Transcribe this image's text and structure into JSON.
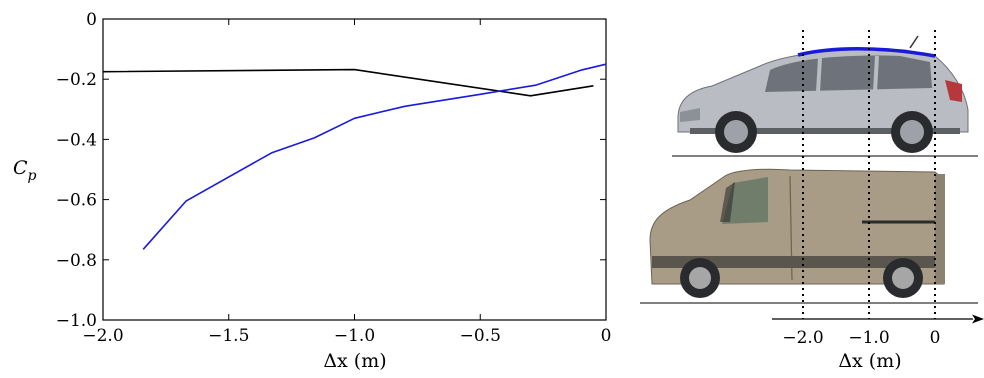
{
  "chart_data": {
    "type": "line",
    "xlabel": "Δx (m)",
    "ylabel": "Cp",
    "xlim": [
      -2.0,
      0
    ],
    "ylim": [
      -1.0,
      0
    ],
    "x_ticks": [
      "−2.0",
      "−1.5",
      "−1.0",
      "−0.5",
      "0"
    ],
    "y_ticks": [
      "0",
      "−0.2",
      "−0.4",
      "−0.6",
      "−0.8",
      "−1.0"
    ],
    "grid": false,
    "series": [
      {
        "color": "#000000",
        "x": [
          -2.0,
          -1.0,
          -0.3,
          -0.05
        ],
        "y": [
          -0.175,
          -0.168,
          -0.255,
          -0.222
        ]
      },
      {
        "color": "#1a1adb",
        "x": [
          -1.84,
          -1.67,
          -1.33,
          -1.16,
          -1.0,
          -0.8,
          -0.5,
          -0.28,
          -0.1,
          0.0
        ],
        "y": [
          -0.765,
          -0.605,
          -0.445,
          -0.395,
          -0.33,
          -0.29,
          -0.25,
          -0.22,
          -0.17,
          -0.15
        ]
      }
    ]
  },
  "diagram": {
    "axis_ticks": [
      "−2.0",
      "−1.0",
      "0"
    ],
    "axis_label": "Δx (m)",
    "ref_x": [
      -2.0,
      -1.0,
      0.0
    ],
    "car_color": "#b9bcc2",
    "van_color": "#a89c86",
    "roof_line_color": "#1a1adb"
  }
}
